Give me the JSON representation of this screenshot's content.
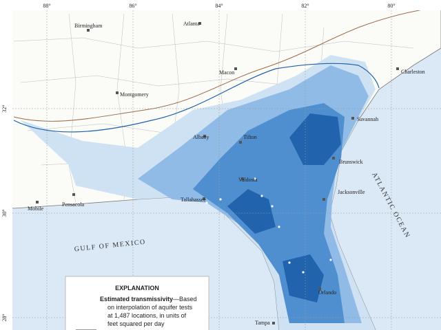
{
  "map": {
    "longitude_labels": [
      "88°",
      "86°",
      "84°",
      "82°",
      "80°"
    ],
    "latitude_labels": [
      "32°",
      "30°",
      "28°"
    ],
    "cities": [
      "Birmingham",
      "Atlanta",
      "Macon",
      "Charleston",
      "Montgomery",
      "Savannah",
      "Albany",
      "Tifton",
      "Brunswick",
      "Valdosta",
      "Jacksonville",
      "Tallahassee",
      "Mobile",
      "Pensacola",
      "Tampa",
      "Orlando"
    ],
    "water_labels": [
      "GULF OF MEXICO",
      "ATLANTIC OCEAN"
    ]
  },
  "explanation": {
    "title": "EXPLANATION",
    "heading": "Estimated transmissivity",
    "lines": [
      "—Based",
      "on interpolation of aquifer tests",
      "at 1,487 locations, in units of",
      "feet squared per day"
    ]
  }
}
